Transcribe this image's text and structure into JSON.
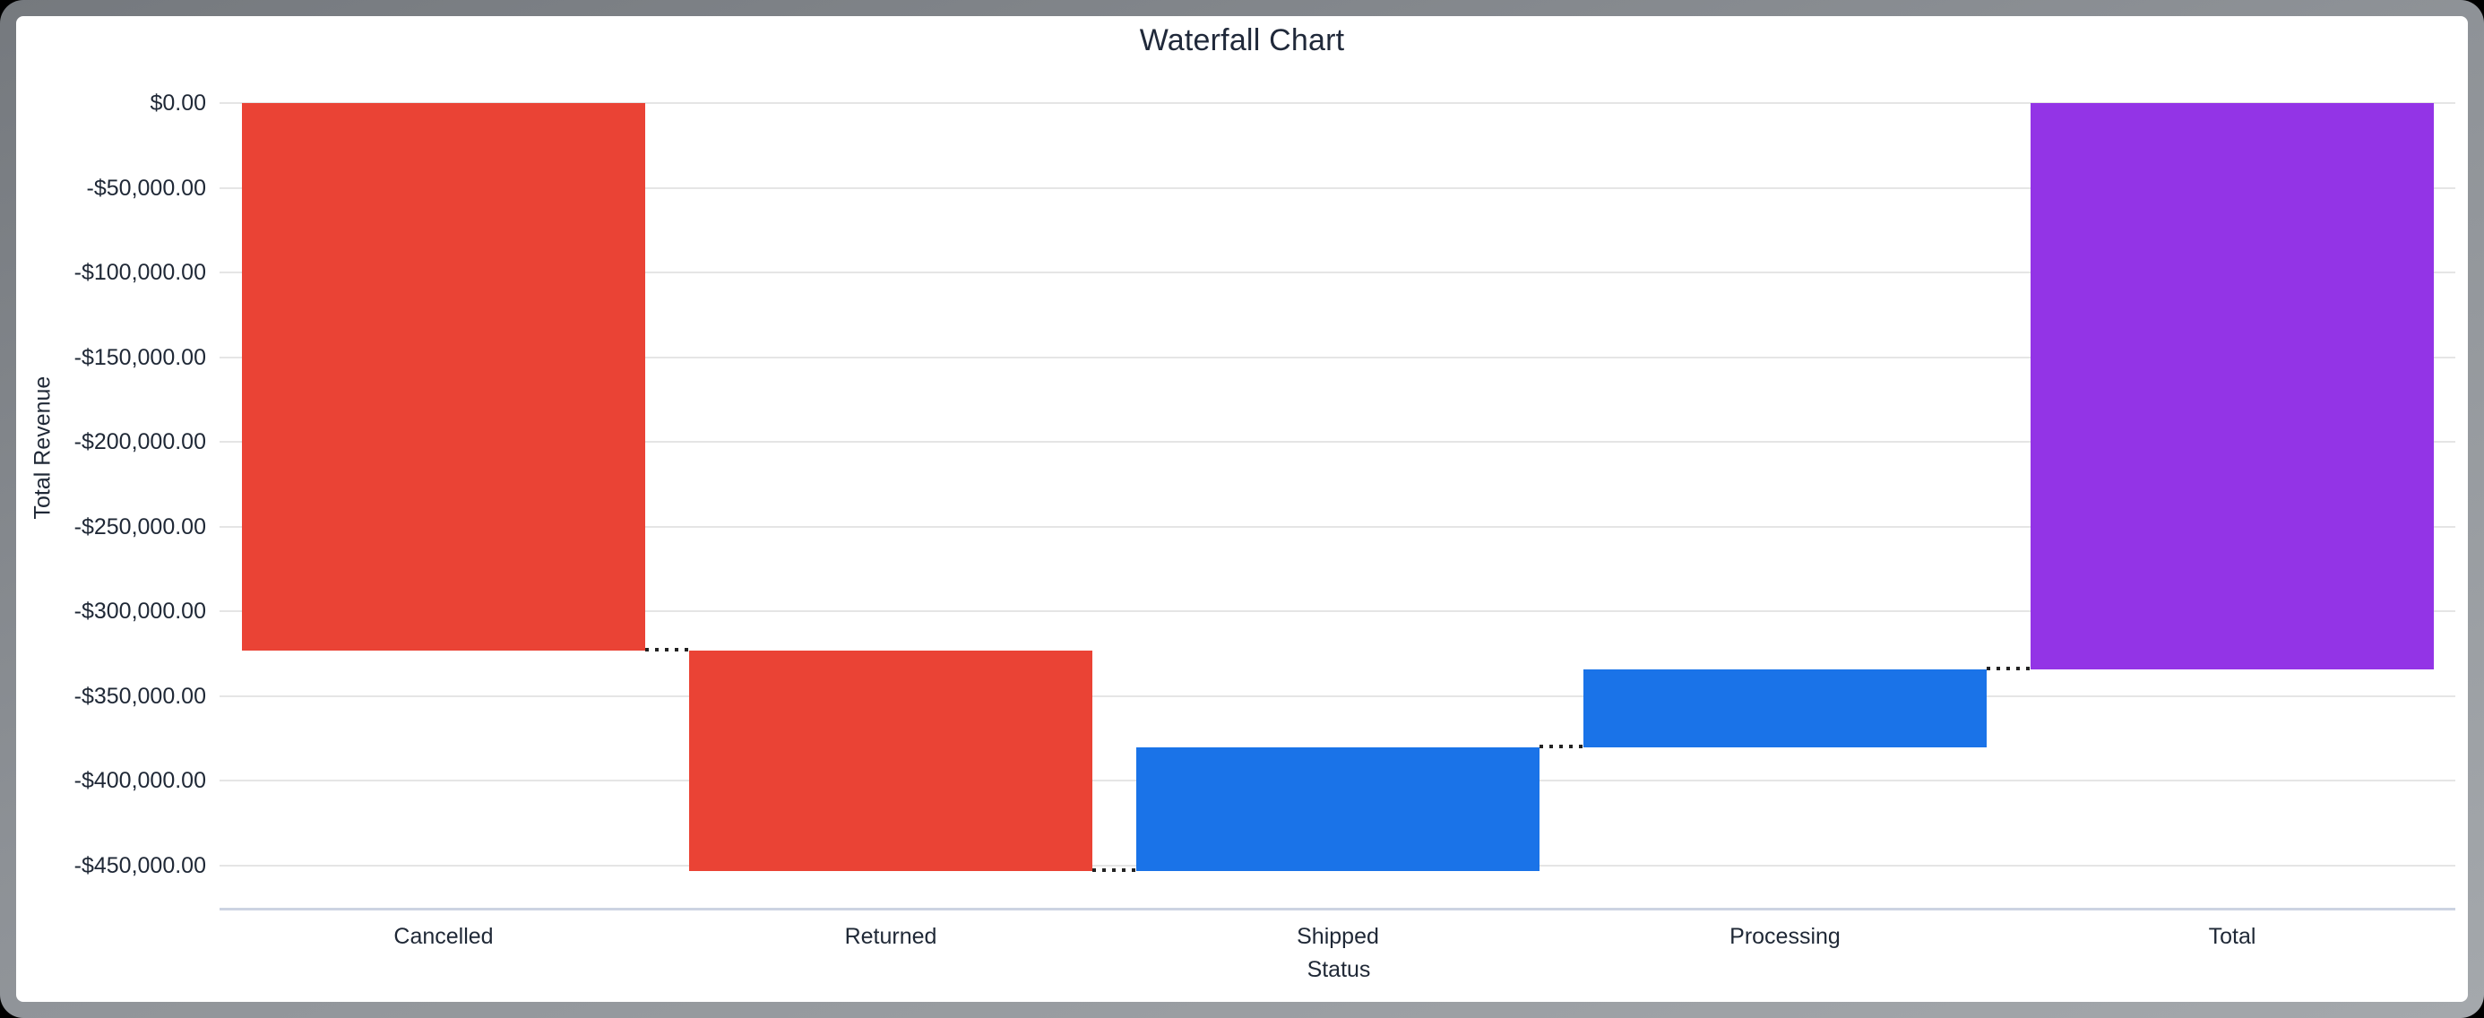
{
  "window": {
    "title": "Waterfall Chart"
  },
  "chart_data": {
    "type": "bar",
    "subtype": "waterfall",
    "title": "Waterfall Chart",
    "xlabel": "Status",
    "ylabel": "Total Revenue",
    "legend": "none",
    "grid": true,
    "categories": [
      "Cancelled",
      "Returned",
      "Shipped",
      "Processing",
      "Total"
    ],
    "bars": [
      {
        "label": "Cancelled",
        "start": 0,
        "end": -323100,
        "delta": -323100,
        "color": "#EA4335",
        "role": "decrease"
      },
      {
        "label": "Returned",
        "start": -323100,
        "end": -453450,
        "delta": -130350,
        "color": "#EA4335",
        "role": "decrease"
      },
      {
        "label": "Shipped",
        "start": -453450,
        "end": -380200,
        "delta": 73250,
        "color": "#1A73E8",
        "role": "increase"
      },
      {
        "label": "Processing",
        "start": -380200,
        "end": -334200,
        "delta": 46000,
        "color": "#1A73E8",
        "role": "increase"
      },
      {
        "label": "Total",
        "start": 0,
        "end": -334200,
        "delta": -334200,
        "color": "#9334E6",
        "role": "total"
      }
    ],
    "y_axis": {
      "min": -475000,
      "max": 0,
      "tick_step": 50000,
      "ticks": [
        0,
        -50000,
        -100000,
        -150000,
        -200000,
        -250000,
        -300000,
        -350000,
        -400000,
        -450000
      ],
      "tick_labels": [
        "$0.00",
        "-$50,000.00",
        "-$100,000.00",
        "-$150,000.00",
        "-$200,000.00",
        "-$250,000.00",
        "-$300,000.00",
        "-$350,000.00",
        "-$400,000.00",
        "-$450,000.00"
      ]
    },
    "colors": {
      "negative": "#EA4335",
      "positive": "#1A73E8",
      "total": "#9334E6",
      "gridline": "#E5E5E5",
      "axis_line": "#CCD3E2",
      "text": "#1F2836",
      "connector": "#222222"
    }
  }
}
